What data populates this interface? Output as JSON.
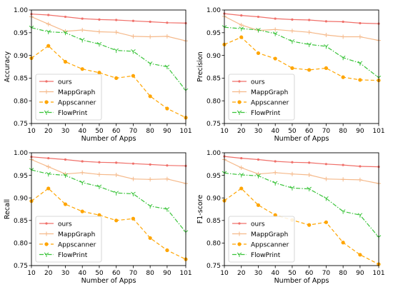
{
  "chart_data": [
    {
      "type": "line",
      "ylabel": "Accuracy",
      "xlabel": "Number of Apps",
      "x": [
        10,
        20,
        30,
        40,
        50,
        60,
        70,
        80,
        90,
        101
      ],
      "xlim": [
        10,
        101
      ],
      "ylim": [
        0.75,
        1.0
      ],
      "yticks": [
        0.75,
        0.8,
        0.85,
        0.9,
        0.95,
        1.0
      ],
      "ytick_labels": [
        "0.75",
        "0.80",
        "0.85",
        "0.90",
        "0.95",
        "1.00"
      ],
      "xtick_labels": [
        "10",
        "20",
        "30",
        "40",
        "50",
        "60",
        "70",
        "80",
        "90",
        "101"
      ],
      "legend_position": "lower-left",
      "series": [
        {
          "name": "ours",
          "color": "#f0706a",
          "marker": "point",
          "dash": "solid",
          "values": [
            0.991,
            0.989,
            0.985,
            0.981,
            0.979,
            0.978,
            0.976,
            0.974,
            0.972,
            0.971
          ]
        },
        {
          "name": "MappGraph",
          "color": "#f5b98a",
          "marker": "plus",
          "dash": "solid",
          "values": [
            0.985,
            0.969,
            0.953,
            0.956,
            0.952,
            0.951,
            0.942,
            0.941,
            0.942,
            0.932
          ]
        },
        {
          "name": "Appscanner",
          "color": "#ffa500",
          "marker": "dot",
          "dash": "dashed",
          "values": [
            0.894,
            0.921,
            0.886,
            0.87,
            0.862,
            0.85,
            0.855,
            0.81,
            0.783,
            0.763
          ]
        },
        {
          "name": "FlowPrint",
          "color": "#3cc43c",
          "marker": "tri",
          "dash": "dashdot",
          "values": [
            0.961,
            0.952,
            0.95,
            0.934,
            0.925,
            0.911,
            0.909,
            0.882,
            0.875,
            0.823
          ]
        }
      ]
    },
    {
      "type": "line",
      "ylabel": "Precision",
      "xlabel": "Number of Apps",
      "x": [
        10,
        20,
        30,
        40,
        50,
        60,
        70,
        80,
        90,
        101
      ],
      "xlim": [
        10,
        101
      ],
      "ylim": [
        0.75,
        1.0
      ],
      "yticks": [
        0.75,
        0.8,
        0.85,
        0.9,
        0.95,
        1.0
      ],
      "ytick_labels": [
        "0.75",
        "0.80",
        "0.85",
        "0.90",
        "0.95",
        "1.00"
      ],
      "xtick_labels": [
        "10",
        "20",
        "30",
        "40",
        "50",
        "60",
        "70",
        "80",
        "90",
        "101"
      ],
      "legend_position": "lower-left",
      "series": [
        {
          "name": "ours",
          "color": "#f0706a",
          "marker": "point",
          "dash": "solid",
          "values": [
            0.992,
            0.988,
            0.985,
            0.981,
            0.979,
            0.978,
            0.975,
            0.974,
            0.971,
            0.97
          ]
        },
        {
          "name": "MappGraph",
          "color": "#f5b98a",
          "marker": "plus",
          "dash": "solid",
          "values": [
            0.986,
            0.967,
            0.955,
            0.957,
            0.954,
            0.951,
            0.945,
            0.941,
            0.941,
            0.933
          ]
        },
        {
          "name": "Appscanner",
          "color": "#ffa500",
          "marker": "dot",
          "dash": "dashed",
          "values": [
            0.924,
            0.94,
            0.905,
            0.893,
            0.872,
            0.868,
            0.872,
            0.852,
            0.846,
            0.845
          ]
        },
        {
          "name": "FlowPrint",
          "color": "#3cc43c",
          "marker": "tri",
          "dash": "dashdot",
          "values": [
            0.962,
            0.959,
            0.956,
            0.948,
            0.931,
            0.924,
            0.92,
            0.895,
            0.883,
            0.851
          ]
        }
      ]
    },
    {
      "type": "line",
      "ylabel": "Recall",
      "xlabel": "Number of Apps",
      "x": [
        10,
        20,
        30,
        40,
        50,
        60,
        70,
        80,
        90,
        101
      ],
      "xlim": [
        10,
        101
      ],
      "ylim": [
        0.75,
        1.0
      ],
      "yticks": [
        0.75,
        0.8,
        0.85,
        0.9,
        0.95,
        1.0
      ],
      "ytick_labels": [
        "0.75",
        "0.80",
        "0.85",
        "0.90",
        "0.95",
        "1.00"
      ],
      "xtick_labels": [
        "10",
        "20",
        "30",
        "40",
        "50",
        "60",
        "70",
        "80",
        "90",
        "101"
      ],
      "legend_position": "lower-left",
      "series": [
        {
          "name": "ours",
          "color": "#f0706a",
          "marker": "point",
          "dash": "solid",
          "values": [
            0.991,
            0.988,
            0.985,
            0.981,
            0.979,
            0.978,
            0.976,
            0.974,
            0.972,
            0.971
          ]
        },
        {
          "name": "MappGraph",
          "color": "#f5b98a",
          "marker": "plus",
          "dash": "solid",
          "values": [
            0.985,
            0.969,
            0.953,
            0.956,
            0.952,
            0.951,
            0.942,
            0.941,
            0.942,
            0.932
          ]
        },
        {
          "name": "Appscanner",
          "color": "#ffa500",
          "marker": "dot",
          "dash": "dashed",
          "values": [
            0.893,
            0.921,
            0.886,
            0.87,
            0.862,
            0.85,
            0.854,
            0.811,
            0.784,
            0.764
          ]
        },
        {
          "name": "FlowPrint",
          "color": "#3cc43c",
          "marker": "tri",
          "dash": "dashdot",
          "values": [
            0.962,
            0.953,
            0.95,
            0.934,
            0.925,
            0.911,
            0.909,
            0.882,
            0.875,
            0.824
          ]
        }
      ]
    },
    {
      "type": "line",
      "ylabel": "F1-score",
      "xlabel": "Number of Apps",
      "x": [
        10,
        20,
        30,
        40,
        50,
        60,
        70,
        80,
        90,
        101
      ],
      "xlim": [
        10,
        101
      ],
      "ylim": [
        0.75,
        1.0
      ],
      "yticks": [
        0.75,
        0.8,
        0.85,
        0.9,
        0.95,
        1.0
      ],
      "ytick_labels": [
        "0.75",
        "0.80",
        "0.85",
        "0.90",
        "0.95",
        "1.00"
      ],
      "xtick_labels": [
        "10",
        "20",
        "30",
        "40",
        "50",
        "60",
        "70",
        "80",
        "90",
        "101"
      ],
      "legend_position": "lower-left",
      "series": [
        {
          "name": "ours",
          "color": "#f0706a",
          "marker": "point",
          "dash": "solid",
          "values": [
            0.992,
            0.988,
            0.985,
            0.981,
            0.979,
            0.978,
            0.975,
            0.973,
            0.97,
            0.969
          ]
        },
        {
          "name": "MappGraph",
          "color": "#f5b98a",
          "marker": "plus",
          "dash": "solid",
          "values": [
            0.985,
            0.967,
            0.953,
            0.956,
            0.953,
            0.951,
            0.942,
            0.941,
            0.94,
            0.932
          ]
        },
        {
          "name": "Appscanner",
          "color": "#ffa500",
          "marker": "dot",
          "dash": "dashed",
          "values": [
            0.894,
            0.921,
            0.884,
            0.862,
            0.851,
            0.84,
            0.846,
            0.801,
            0.774,
            0.753
          ]
        },
        {
          "name": "FlowPrint",
          "color": "#3cc43c",
          "marker": "tri",
          "dash": "dashdot",
          "values": [
            0.955,
            0.951,
            0.949,
            0.933,
            0.922,
            0.92,
            0.899,
            0.87,
            0.862,
            0.813
          ]
        }
      ]
    }
  ]
}
